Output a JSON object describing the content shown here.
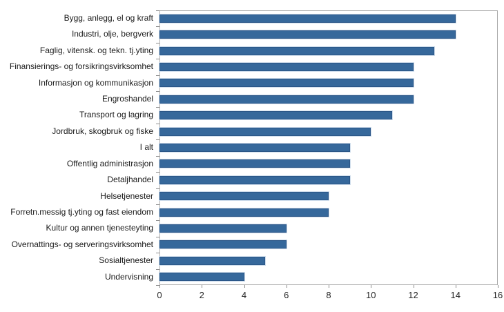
{
  "chart_data": {
    "type": "bar",
    "orientation": "horizontal",
    "title": "",
    "categories": [
      "Bygg, anlegg, el og kraft",
      "Industri, olje, bergverk",
      "Faglig, vitensk. og tekn. tj.yting",
      "Finansierings- og forsikringsvirksomhet",
      "Informasjon og kommunikasjon",
      "Engroshandel",
      "Transport og lagring",
      "Jordbruk, skogbruk og fiske",
      "I alt",
      "Offentlig administrasjon",
      "Detaljhandel",
      "Helsetjenester",
      "Forretn.messig tj.yting og fast eiendom",
      "Kultur og annen tjenesteyting",
      "Overnattings- og serveringsvirksomhet",
      "Sosialtjenester",
      "Undervisning"
    ],
    "values": [
      14,
      14,
      13,
      12,
      12,
      12,
      11,
      10,
      9,
      9,
      9,
      8,
      8,
      6,
      6,
      5,
      4
    ],
    "xlabel": "",
    "ylabel": "",
    "xlim": [
      0,
      16
    ],
    "xticks": [
      0,
      2,
      4,
      6,
      8,
      10,
      12,
      14,
      16
    ],
    "grid": false,
    "legend": null,
    "colors": {
      "bar_fill": "#36689b",
      "bar_border": "#2b5687",
      "bar_halo": "#cfddec",
      "axis_line": "#ababab",
      "tick_mark": "#8c8c8c",
      "category_text": "#1a1a1a",
      "tick_text": "#262626",
      "background": "#ffffff"
    }
  }
}
